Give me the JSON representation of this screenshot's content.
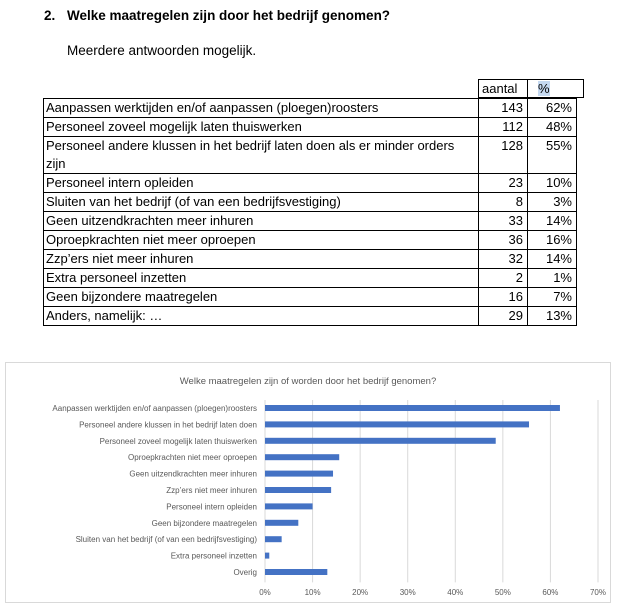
{
  "question": {
    "number": "2.",
    "text": "Welke maatregelen zijn door het bedrijf genomen?"
  },
  "subtitle": "Meerdere antwoorden mogelijk.",
  "table": {
    "headers": [
      "aantal",
      "%"
    ],
    "rows": [
      {
        "label": "Aanpassen werktijden en/of aanpassen (ploegen)roosters",
        "count": "143",
        "pct": "62%"
      },
      {
        "label": "Personeel zoveel mogelijk laten thuiswerken",
        "count": "112",
        "pct": "48%"
      },
      {
        "label": "Personeel andere klussen in het bedrijf laten doen als er minder orders zijn",
        "count": "128",
        "pct": "55%"
      },
      {
        "label": "Personeel intern opleiden",
        "count": "23",
        "pct": "10%"
      },
      {
        "label": "Sluiten van het bedrijf (of van een bedrijfsvestiging)",
        "count": "8",
        "pct": "3%"
      },
      {
        "label": "Geen uitzendkrachten meer inhuren",
        "count": "33",
        "pct": "14%"
      },
      {
        "label": "Oproepkrachten niet meer oproepen",
        "count": "36",
        "pct": "16%"
      },
      {
        "label": "Zzp’ers niet meer inhuren",
        "count": "32",
        "pct": "14%"
      },
      {
        "label": "Extra personeel inzetten",
        "count": "2",
        "pct": "1%"
      },
      {
        "label": "Geen bijzondere maatregelen",
        "count": "16",
        "pct": "7%"
      },
      {
        "label": "Anders, namelijk: …",
        "count": "29",
        "pct": "13%"
      }
    ]
  },
  "chart_data": {
    "type": "bar",
    "orientation": "horizontal",
    "title": "Welke maatregelen zijn of worden door het bedrijf genomen?",
    "categories": [
      "Aanpassen werktijden en/of aanpassen (ploegen)roosters",
      "Personeel andere klussen in het bedrijf laten doen",
      "Personeel zoveel mogelijk laten thuiswerken",
      "Oproepkrachten niet meer oproepen",
      "Geen uitzendkrachten meer inhuren",
      "Zzp’ers niet meer inhuren",
      "Personeel intern opleiden",
      "Geen bijzondere maatregelen",
      "Sluiten van het bedrijf (of van een bedrijfsvestiging)",
      "Extra personeel inzetten",
      "Overig"
    ],
    "values": [
      62,
      55.5,
      48.5,
      15.6,
      14.3,
      13.9,
      10,
      7,
      3.5,
      0.9,
      13.1
    ],
    "xlim": [
      0,
      70
    ],
    "xticks": [
      "0%",
      "10%",
      "20%",
      "30%",
      "40%",
      "50%",
      "60%",
      "70%"
    ],
    "grid": "vertical",
    "bar_color": "#4472c4",
    "grid_color": "#d9d9d9"
  }
}
